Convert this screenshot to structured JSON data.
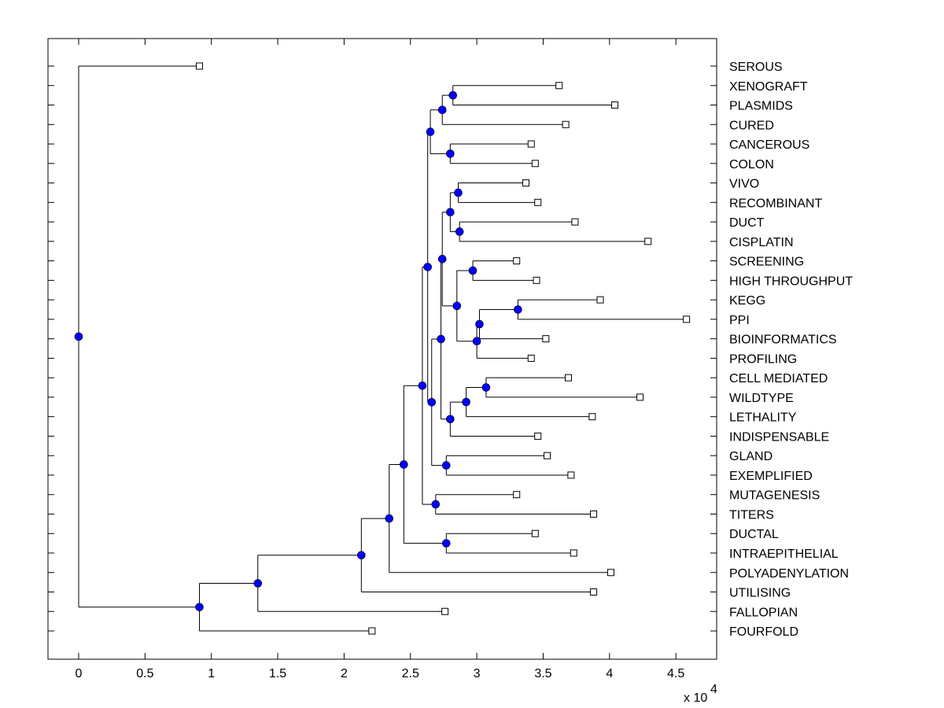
{
  "chart_data": {
    "type": "dendrogram",
    "title": "",
    "xlabel": "",
    "ylabel": "",
    "x_multiplier_label": "x 10",
    "x_multiplier_exponent": "4",
    "xlim": [
      -0.23,
      4.8
    ],
    "xticks": [
      0,
      0.5,
      1,
      1.5,
      2,
      2.5,
      3,
      3.5,
      4,
      4.5
    ],
    "xtick_labels": [
      "0",
      "0.5",
      "1",
      "1.5",
      "2",
      "2.5",
      "3",
      "3.5",
      "4",
      "4.5"
    ],
    "grid": false,
    "colors": {
      "internal_node": "#0000ff",
      "leaf_marker_fill": "#ffffff",
      "line": "#000000"
    },
    "leaves": [
      {
        "label": "SEROUS",
        "x": 0.91
      },
      {
        "label": "XENOGRAFT",
        "x": 3.62
      },
      {
        "label": "PLASMIDS",
        "x": 4.04
      },
      {
        "label": "CURED",
        "x": 3.67
      },
      {
        "label": "CANCEROUS",
        "x": 3.41
      },
      {
        "label": "COLON",
        "x": 3.44
      },
      {
        "label": "VIVO",
        "x": 3.37
      },
      {
        "label": "RECOMBINANT",
        "x": 3.46
      },
      {
        "label": "DUCT",
        "x": 3.74
      },
      {
        "label": "CISPLATIN",
        "x": 4.29
      },
      {
        "label": "SCREENING",
        "x": 3.3
      },
      {
        "label": "HIGH THROUGHPUT",
        "x": 3.45
      },
      {
        "label": "KEGG",
        "x": 3.93
      },
      {
        "label": "PPI",
        "x": 4.58
      },
      {
        "label": "BIOINFORMATICS",
        "x": 3.52
      },
      {
        "label": "PROFILING",
        "x": 3.41
      },
      {
        "label": "CELL MEDIATED",
        "x": 3.69
      },
      {
        "label": "WILDTYPE",
        "x": 4.23
      },
      {
        "label": "LETHALITY",
        "x": 3.87
      },
      {
        "label": "INDISPENSABLE",
        "x": 3.46
      },
      {
        "label": "GLAND",
        "x": 3.53
      },
      {
        "label": "EXEMPLIFIED",
        "x": 3.71
      },
      {
        "label": "MUTAGENESIS",
        "x": 3.3
      },
      {
        "label": "TITERS",
        "x": 3.88
      },
      {
        "label": "DUCTAL",
        "x": 3.44
      },
      {
        "label": "INTRAEPITHELIAL",
        "x": 3.73
      },
      {
        "label": "POLYADENYLATION",
        "x": 4.01
      },
      {
        "label": "UTILISING",
        "x": 3.88
      },
      {
        "label": "FALLOPIAN",
        "x": 2.76
      },
      {
        "label": "FOURFOLD",
        "x": 2.21
      }
    ],
    "internal_nodes": [
      {
        "id": "n_xeno_plas",
        "x": 2.82,
        "children": [
          "XENOGRAFT",
          "PLASMIDS"
        ]
      },
      {
        "id": "n_cured",
        "x": 2.74,
        "children": [
          "n_xeno_plas",
          "CURED"
        ]
      },
      {
        "id": "n_canc_colon",
        "x": 2.8,
        "children": [
          "CANCEROUS",
          "COLON"
        ]
      },
      {
        "id": "n_top4",
        "x": 2.65,
        "children": [
          "n_cured",
          "n_canc_colon"
        ]
      },
      {
        "id": "n_vivo_rec",
        "x": 2.86,
        "children": [
          "VIVO",
          "RECOMBINANT"
        ]
      },
      {
        "id": "n_duct_cisp",
        "x": 2.87,
        "children": [
          "DUCT",
          "CISPLATIN"
        ]
      },
      {
        "id": "n_vivo_grp",
        "x": 2.8,
        "children": [
          "n_vivo_rec",
          "n_duct_cisp"
        ]
      },
      {
        "id": "n_screen_ht",
        "x": 2.97,
        "children": [
          "SCREENING",
          "HIGH THROUGHPUT"
        ]
      },
      {
        "id": "n_kegg_ppi",
        "x": 3.31,
        "children": [
          "KEGG",
          "PPI"
        ]
      },
      {
        "id": "n_bioinf",
        "x": 3.02,
        "children": [
          "n_kegg_ppi",
          "BIOINFORMATICS"
        ]
      },
      {
        "id": "n_prof",
        "x": 3.0,
        "children": [
          "n_bioinf",
          "PROFILING"
        ]
      },
      {
        "id": "n_screen_grp",
        "x": 2.85,
        "children": [
          "n_screen_ht",
          "n_prof"
        ]
      },
      {
        "id": "n_mid",
        "x": 2.74,
        "children": [
          "n_vivo_grp",
          "n_screen_grp"
        ]
      },
      {
        "id": "n_cell_wild",
        "x": 3.07,
        "children": [
          "CELL MEDIATED",
          "WILDTYPE"
        ]
      },
      {
        "id": "n_leth",
        "x": 2.92,
        "children": [
          "n_cell_wild",
          "LETHALITY"
        ]
      },
      {
        "id": "n_indisp",
        "x": 2.8,
        "children": [
          "n_leth",
          "INDISPENSABLE"
        ]
      },
      {
        "id": "n_mid_indisp",
        "x": 2.73,
        "children": [
          "n_mid",
          "n_indisp"
        ]
      },
      {
        "id": "n_gland_exemp",
        "x": 2.77,
        "children": [
          "GLAND",
          "EXEMPLIFIED"
        ]
      },
      {
        "id": "n_with_gland",
        "x": 2.66,
        "children": [
          "n_mid_indisp",
          "n_gland_exemp"
        ]
      },
      {
        "id": "n_upper",
        "x": 2.63,
        "children": [
          "n_top4",
          "n_with_gland"
        ]
      },
      {
        "id": "n_mutag_titers",
        "x": 2.69,
        "children": [
          "MUTAGENESIS",
          "TITERS"
        ]
      },
      {
        "id": "n_with_mutag",
        "x": 2.59,
        "children": [
          "n_upper",
          "n_mutag_titers"
        ]
      },
      {
        "id": "n_ductal_intra",
        "x": 2.77,
        "children": [
          "DUCTAL",
          "INTRAEPITHELIAL"
        ]
      },
      {
        "id": "n_with_ductal",
        "x": 2.45,
        "children": [
          "n_with_mutag",
          "n_ductal_intra"
        ]
      },
      {
        "id": "n_poly",
        "x": 2.34,
        "children": [
          "n_with_ductal",
          "POLYADENYLATION"
        ]
      },
      {
        "id": "n_util",
        "x": 2.13,
        "children": [
          "n_poly",
          "UTILISING"
        ]
      },
      {
        "id": "n_fallop",
        "x": 1.35,
        "children": [
          "n_util",
          "FALLOPIAN"
        ]
      },
      {
        "id": "n_fourfold",
        "x": 0.91,
        "children": [
          "n_fallop",
          "FOURFOLD"
        ]
      },
      {
        "id": "root",
        "x": 0.0,
        "children": [
          "SEROUS",
          "n_fourfold"
        ]
      }
    ]
  }
}
